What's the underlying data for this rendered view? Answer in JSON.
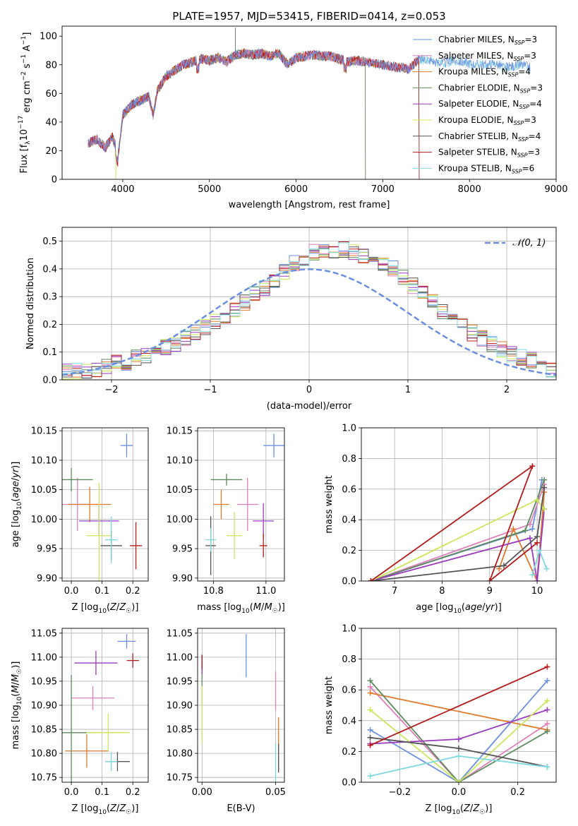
{
  "colors": {
    "Chabrier MILES": "#6a8fe0",
    "Salpeter MILES": "#e07fb8",
    "Kroupa MILES": "#e07a2b",
    "Chabrier ELODIE": "#5e8a5e",
    "Salpeter ELODIE": "#9a3bbf",
    "Kroupa ELODIE": "#c9e85b",
    "Chabrier STELIB": "#555555",
    "Salpeter STELIB": "#b51b1b",
    "Kroupa STELIB": "#7fd8e0"
  },
  "chart_data": [
    {
      "id": "spectrum",
      "type": "line",
      "title": "PLATE=1957, MJD=53415, FIBERID=0414, z=0.053",
      "xlabel": "wavelength [Angstrom, rest frame]",
      "ylabel": "Flux [f_λ 10^-17 erg cm^-2 s^-1 A^-1]",
      "xlim": [
        3300,
        9000
      ],
      "ylim": [
        0,
        107
      ],
      "xticks": [
        4000,
        5000,
        6000,
        7000,
        8000,
        9000
      ],
      "yticks": [
        0,
        20,
        40,
        60,
        80,
        100
      ],
      "legend_position": "top-right",
      "spectrum_points": [
        [
          3600,
          25
        ],
        [
          3700,
          28
        ],
        [
          3800,
          22
        ],
        [
          3880,
          30
        ],
        [
          3950,
          18
        ],
        [
          4000,
          45
        ],
        [
          4100,
          52
        ],
        [
          4200,
          55
        ],
        [
          4300,
          58
        ],
        [
          4350,
          45
        ],
        [
          4400,
          62
        ],
        [
          4500,
          72
        ],
        [
          4600,
          76
        ],
        [
          4700,
          80
        ],
        [
          4800,
          82
        ],
        [
          4900,
          84
        ],
        [
          5000,
          83
        ],
        [
          5100,
          85
        ],
        [
          5200,
          82
        ],
        [
          5300,
          87
        ],
        [
          5400,
          88
        ],
        [
          5500,
          87
        ],
        [
          5600,
          88
        ],
        [
          5700,
          86
        ],
        [
          5800,
          88
        ],
        [
          5900,
          80
        ],
        [
          6000,
          85
        ],
        [
          6100,
          86
        ],
        [
          6200,
          87
        ],
        [
          6300,
          86
        ],
        [
          6400,
          86
        ],
        [
          6500,
          84
        ],
        [
          6600,
          82
        ],
        [
          6700,
          83
        ],
        [
          6800,
          82
        ],
        [
          6900,
          81
        ],
        [
          7000,
          80
        ],
        [
          7100,
          79
        ],
        [
          7200,
          78
        ],
        [
          7300,
          77
        ],
        [
          7400,
          83
        ],
        [
          7500,
          84
        ],
        [
          7600,
          82
        ],
        [
          7700,
          81
        ],
        [
          7800,
          83
        ],
        [
          7900,
          82
        ],
        [
          8000,
          81
        ],
        [
          8100,
          80
        ],
        [
          8200,
          80
        ],
        [
          8300,
          81
        ],
        [
          8400,
          78
        ],
        [
          8500,
          79
        ],
        [
          8600,
          80
        ],
        [
          8700,
          78
        ]
      ],
      "series": [
        {
          "name": "Chabrier MILES, N_SSP=3",
          "label_main": "Chabrier MILES, N",
          "label_sub": "SSP",
          "label_tail": "=3",
          "xmax": 8700
        },
        {
          "name": "Salpeter MILES, N_SSP=3",
          "label_main": "Salpeter MILES, N",
          "label_sub": "SSP",
          "label_tail": "=3",
          "xmax": 7420
        },
        {
          "name": "Kroupa MILES, N_SSP=4",
          "label_main": "Kroupa MILES, N",
          "label_sub": "SSP",
          "label_tail": "=4",
          "xmax": 7420
        },
        {
          "name": "Chabrier ELODIE, N_SSP=3",
          "label_main": "Chabrier ELODIE, N",
          "label_sub": "SSP",
          "label_tail": "=3",
          "xmax": 6800
        },
        {
          "name": "Salpeter ELODIE, N_SSP=4",
          "label_main": "Salpeter ELODIE, N",
          "label_sub": "SSP",
          "label_tail": "=4",
          "xmax": 6800
        },
        {
          "name": "Kroupa ELODIE, N_SSP=3",
          "label_main": "Kroupa ELODIE, N",
          "label_sub": "SSP",
          "label_tail": "=3",
          "xmax": 6800
        },
        {
          "name": "Chabrier STELIB, N_SSP=4",
          "label_main": "Chabrier STELIB, N",
          "label_sub": "SSP",
          "label_tail": "=4",
          "xmax": 7420
        },
        {
          "name": "Salpeter STELIB, N_SSP=3",
          "label_main": "Salpeter STELIB, N",
          "label_sub": "SSP",
          "label_tail": "=3",
          "xmax": 7420
        },
        {
          "name": "Kroupa STELIB, N_SSP=6",
          "label_main": "Kroupa STELIB, N",
          "label_sub": "SSP",
          "label_tail": "=6",
          "xmax": 8700
        }
      ]
    },
    {
      "id": "residuals",
      "type": "histogram",
      "xlabel": "(data-model)/error",
      "ylabel": "Normed distribution",
      "xlim": [
        -2.5,
        2.5
      ],
      "ylim": [
        0,
        0.55
      ],
      "xticks": [
        -2,
        -1,
        0,
        1,
        2
      ],
      "yticks": [
        0.0,
        0.1,
        0.2,
        0.3,
        0.4,
        0.5
      ],
      "legend": "𝒩(0, 1)",
      "legend_position": "top-right",
      "bin_width": 0.1,
      "bins_start": -2.5,
      "histogram": [
        0.03,
        0.03,
        0.03,
        0.04,
        0.05,
        0.06,
        0.06,
        0.08,
        0.09,
        0.1,
        0.12,
        0.13,
        0.15,
        0.17,
        0.19,
        0.21,
        0.23,
        0.25,
        0.28,
        0.31,
        0.33,
        0.36,
        0.39,
        0.42,
        0.44,
        0.46,
        0.46,
        0.46,
        0.47,
        0.46,
        0.45,
        0.44,
        0.42,
        0.4,
        0.37,
        0.34,
        0.31,
        0.28,
        0.25,
        0.22,
        0.2,
        0.17,
        0.15,
        0.13,
        0.11,
        0.09,
        0.08,
        0.07,
        0.06,
        0.04
      ]
    },
    {
      "id": "age_vs_Z",
      "type": "errorbar",
      "xlabel": "Z [log10(Z/Z☉)]",
      "ylabel": "age [log10(age/yr)]",
      "xlim": [
        -0.03,
        0.25
      ],
      "ylim": [
        9.895,
        10.155
      ],
      "xticks": [
        0.0,
        0.1,
        0.2
      ],
      "yticks": [
        9.9,
        9.95,
        10.0,
        10.05,
        10.1,
        10.15
      ],
      "points": [
        {
          "series": "Chabrier MILES",
          "x": 0.18,
          "y": 10.125,
          "xerr": 0.02,
          "yerr": 0.02
        },
        {
          "series": "Salpeter MILES",
          "x": 0.02,
          "y": 10.025,
          "xerr": 0.07,
          "yerr": 0.045
        },
        {
          "series": "Kroupa MILES",
          "x": 0.06,
          "y": 10.025,
          "xerr": 0.07,
          "yerr": 0.03
        },
        {
          "series": "Chabrier ELODIE",
          "x": 0.0,
          "y": 10.067,
          "xerr": 0.07,
          "yerr": 0.02
        },
        {
          "series": "Salpeter ELODIE",
          "x": 0.09,
          "y": 9.997,
          "xerr": 0.065,
          "yerr": 0.025
        },
        {
          "series": "Kroupa ELODIE",
          "x": 0.09,
          "y": 9.972,
          "xerr": 0.04,
          "yerr": 0.09
        },
        {
          "series": "Chabrier STELIB",
          "x": 0.13,
          "y": 9.955,
          "xerr": 0.035,
          "yerr": 0.025
        },
        {
          "series": "Salpeter STELIB",
          "x": 0.21,
          "y": 9.955,
          "xerr": 0.02,
          "yerr": 0.04
        },
        {
          "series": "Kroupa STELIB",
          "x": 0.13,
          "y": 9.965,
          "xerr": 0.02,
          "yerr": 0.04
        }
      ]
    },
    {
      "id": "age_vs_mass",
      "type": "errorbar",
      "xlabel": "mass [log10(M/M☉)]",
      "ylabel": "",
      "xlim": [
        10.74,
        11.07
      ],
      "ylim": [
        9.895,
        10.155
      ],
      "xticks": [
        10.8,
        11.0
      ],
      "yticks": [
        9.9,
        9.95,
        10.0,
        10.05,
        10.1,
        10.15
      ],
      "points": [
        {
          "series": "Chabrier MILES",
          "x": 11.03,
          "y": 10.125,
          "xerr": 0.04,
          "yerr": 0.02
        },
        {
          "series": "Salpeter MILES",
          "x": 10.93,
          "y": 10.025,
          "xerr": 0.04,
          "yerr": 0.045
        },
        {
          "series": "Kroupa MILES",
          "x": 10.83,
          "y": 10.025,
          "xerr": 0.03,
          "yerr": 0.025
        },
        {
          "series": "Chabrier ELODIE",
          "x": 10.85,
          "y": 10.067,
          "xerr": 0.06,
          "yerr": 0.01
        },
        {
          "series": "Salpeter ELODIE",
          "x": 10.99,
          "y": 9.997,
          "xerr": 0.04,
          "yerr": 0.03
        },
        {
          "series": "Kroupa ELODIE",
          "x": 10.88,
          "y": 9.972,
          "xerr": 0.03,
          "yerr": 0.04
        },
        {
          "series": "Chabrier STELIB",
          "x": 10.79,
          "y": 9.955,
          "xerr": 0.02,
          "yerr": 0.05
        },
        {
          "series": "Salpeter STELIB",
          "x": 10.99,
          "y": 9.955,
          "xerr": 0.015,
          "yerr": 0.02
        },
        {
          "series": "Kroupa STELIB",
          "x": 10.79,
          "y": 9.965,
          "xerr": 0.02,
          "yerr": 0.02
        }
      ]
    },
    {
      "id": "mass_weight_vs_age",
      "type": "line",
      "xlabel": "age [log10(age/yr)]",
      "ylabel": "mass weight",
      "xlim": [
        6.3,
        10.4
      ],
      "ylim": [
        0.0,
        1.0
      ],
      "xticks": [
        7,
        8,
        9,
        10
      ],
      "yticks": [
        0.0,
        0.2,
        0.4,
        0.6,
        0.8,
        1.0
      ],
      "series": [
        {
          "name": "Chabrier MILES",
          "x": [
            6.5,
            9.9,
            10.1
          ],
          "y": [
            0.0,
            0.34,
            0.66
          ]
        },
        {
          "name": "Salpeter MILES",
          "x": [
            6.5,
            9.85,
            10.15
          ],
          "y": [
            0.0,
            0.37,
            0.63
          ]
        },
        {
          "name": "Kroupa MILES",
          "x": [
            9.2,
            9.5,
            10.0,
            10.15
          ],
          "y": [
            0.08,
            0.34,
            0.0,
            0.58
          ]
        },
        {
          "name": "Chabrier ELODIE",
          "x": [
            6.5,
            9.75,
            10.15
          ],
          "y": [
            0.0,
            0.33,
            0.66
          ]
        },
        {
          "name": "Salpeter ELODIE",
          "x": [
            6.5,
            9.85,
            10.0,
            10.15
          ],
          "y": [
            0.0,
            0.28,
            0.0,
            0.47
          ]
        },
        {
          "name": "Kroupa ELODIE",
          "x": [
            6.5,
            10.0,
            10.15
          ],
          "y": [
            0.0,
            0.53,
            0.47
          ]
        },
        {
          "name": "Chabrier STELIB",
          "x": [
            6.5,
            9.3,
            10.0,
            10.15
          ],
          "y": [
            0.0,
            0.1,
            0.29,
            0.61
          ]
        },
        {
          "name": "Salpeter STELIB",
          "x": [
            6.5,
            9.9,
            9.0,
            10.0
          ],
          "y": [
            0.0,
            0.75,
            0.0,
            0.25
          ]
        },
        {
          "name": "Kroupa STELIB",
          "x": [
            9.9,
            10.05,
            10.2
          ],
          "y": [
            0.04,
            0.2,
            0.08
          ]
        }
      ]
    },
    {
      "id": "mass_vs_Z",
      "type": "errorbar",
      "xlabel": "Z [log10(Z/Z☉)]",
      "ylabel": "mass [log10(M/M☉)]",
      "xlim": [
        -0.03,
        0.25
      ],
      "ylim": [
        10.74,
        11.06
      ],
      "xticks": [
        0.0,
        0.1,
        0.2
      ],
      "yticks": [
        10.75,
        10.8,
        10.85,
        10.9,
        10.95,
        11.0,
        11.05
      ],
      "points": [
        {
          "series": "Chabrier MILES",
          "x": 0.18,
          "y": 11.033,
          "xerr": 0.03,
          "yerr": 0.015
        },
        {
          "series": "Salpeter MILES",
          "x": 0.07,
          "y": 10.915,
          "xerr": 0.07,
          "yerr": 0.025
        },
        {
          "series": "Kroupa MILES",
          "x": 0.05,
          "y": 10.805,
          "xerr": 0.07,
          "yerr": 0.035
        },
        {
          "series": "Chabrier ELODIE",
          "x": 0.0,
          "y": 10.843,
          "xerr": 0.07,
          "yerr": 0.12
        },
        {
          "series": "Salpeter ELODIE",
          "x": 0.08,
          "y": 10.988,
          "xerr": 0.07,
          "yerr": 0.025
        },
        {
          "series": "Kroupa ELODIE",
          "x": 0.12,
          "y": 10.843,
          "xerr": 0.07,
          "yerr": 0.04
        },
        {
          "series": "Chabrier STELIB",
          "x": 0.15,
          "y": 10.783,
          "xerr": 0.04,
          "yerr": 0.02
        },
        {
          "series": "Salpeter STELIB",
          "x": 0.2,
          "y": 10.993,
          "xerr": 0.02,
          "yerr": 0.015
        },
        {
          "series": "Kroupa STELIB",
          "x": 0.13,
          "y": 10.783,
          "xerr": 0.02,
          "yerr": 0.02
        }
      ]
    },
    {
      "id": "mass_vs_ebv",
      "type": "errorbar",
      "xlabel": "E(B-V)",
      "ylabel": "",
      "xlim": [
        -0.003,
        0.056
      ],
      "ylim": [
        10.74,
        11.06
      ],
      "xticks": [
        0.0,
        0.05
      ],
      "yticks": [
        10.75,
        10.8,
        10.85,
        10.9,
        10.95,
        11.0,
        11.05
      ],
      "points": [
        {
          "series": "Chabrier MILES",
          "x": 0.03,
          "y": 11.003,
          "xerr": 0,
          "yerr": 0.045
        },
        {
          "series": "Salpeter MILES",
          "x": 0.05,
          "y": 10.93,
          "xerr": 0,
          "yerr": 0.04
        },
        {
          "series": "Kroupa MILES",
          "x": 0.052,
          "y": 10.82,
          "xerr": 0,
          "yerr": 0.055
        },
        {
          "series": "Chabrier ELODIE",
          "x": 0.0,
          "y": 10.94,
          "xerr": 0,
          "yerr": 0.04
        },
        {
          "series": "Salpeter ELODIE",
          "x": 0.0,
          "y": 10.985,
          "xerr": 0,
          "yerr": 0.02
        },
        {
          "series": "Kroupa ELODIE",
          "x": 0.0,
          "y": 10.88,
          "xerr": 0,
          "yerr": 0.06
        },
        {
          "series": "Chabrier STELIB",
          "x": 0.052,
          "y": 10.79,
          "xerr": 0,
          "yerr": 0.03
        },
        {
          "series": "Salpeter STELIB",
          "x": 0.0,
          "y": 10.99,
          "xerr": 0,
          "yerr": 0.015
        },
        {
          "series": "Kroupa STELIB",
          "x": 0.05,
          "y": 10.78,
          "xerr": 0,
          "yerr": 0.04
        }
      ]
    },
    {
      "id": "mass_weight_vs_Z",
      "type": "line",
      "xlabel": "Z [log10(Z/Z☉)]",
      "ylabel": "mass weight",
      "xlim": [
        -0.33,
        0.33
      ],
      "ylim": [
        0.0,
        1.0
      ],
      "xticks": [
        -0.2,
        0.0,
        0.2
      ],
      "yticks": [
        0.0,
        0.2,
        0.4,
        0.6,
        0.8,
        1.0
      ],
      "series": [
        {
          "name": "Chabrier MILES",
          "x": [
            -0.3,
            0.0,
            0.3
          ],
          "y": [
            0.34,
            0.0,
            0.66
          ]
        },
        {
          "name": "Salpeter MILES",
          "x": [
            -0.3,
            0.0,
            0.3
          ],
          "y": [
            0.62,
            0.0,
            0.38
          ]
        },
        {
          "name": "Kroupa MILES",
          "x": [
            -0.3,
            0.3
          ],
          "y": [
            0.58,
            0.34
          ]
        },
        {
          "name": "Chabrier ELODIE",
          "x": [
            -0.3,
            0.0,
            0.3
          ],
          "y": [
            0.66,
            0.0,
            0.33
          ]
        },
        {
          "name": "Salpeter ELODIE",
          "x": [
            -0.3,
            0.0,
            0.3
          ],
          "y": [
            0.25,
            0.28,
            0.47
          ]
        },
        {
          "name": "Kroupa ELODIE",
          "x": [
            -0.3,
            0.0,
            0.3
          ],
          "y": [
            0.47,
            0.0,
            0.53
          ]
        },
        {
          "name": "Chabrier STELIB",
          "x": [
            -0.3,
            0.0,
            0.3
          ],
          "y": [
            0.29,
            0.22,
            0.1
          ]
        },
        {
          "name": "Salpeter STELIB",
          "x": [
            -0.3,
            0.3
          ],
          "y": [
            0.24,
            0.75
          ]
        },
        {
          "name": "Kroupa STELIB",
          "x": [
            -0.3,
            0.0,
            0.3
          ],
          "y": [
            0.04,
            0.17,
            0.1
          ]
        }
      ]
    }
  ]
}
